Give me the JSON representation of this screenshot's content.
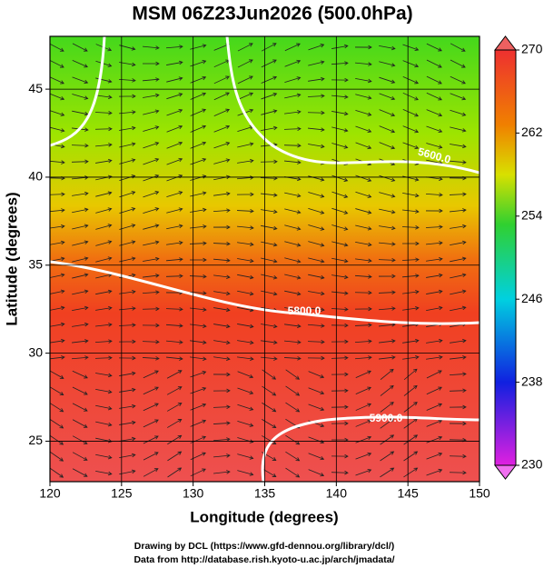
{
  "chart_data": {
    "type": "map",
    "title": "MSM 06Z23Jun2026 (500.0hPa)",
    "x_label": "Longitude (degrees)",
    "y_label": "Latitude  (degrees)",
    "xlim": [
      120,
      150
    ],
    "xticks": [
      120,
      125,
      130,
      135,
      140,
      145,
      150
    ],
    "ylim": [
      22.7,
      48.0
    ],
    "yticks": [
      25,
      30,
      35,
      40,
      45
    ],
    "grid": true,
    "colorbar": {
      "lim": [
        230,
        270
      ],
      "ticks": [
        230,
        238,
        246,
        254,
        262,
        270
      ]
    },
    "contour_labels": [
      "5600.0",
      "5800.0",
      "5900.0"
    ],
    "credits": [
      "Drawing by DCL (https://www.gfd-dennou.org/library/dcl/)",
      "Data from http://database.rish.kyoto-u.ac.jp/arch/jmadata/"
    ]
  }
}
